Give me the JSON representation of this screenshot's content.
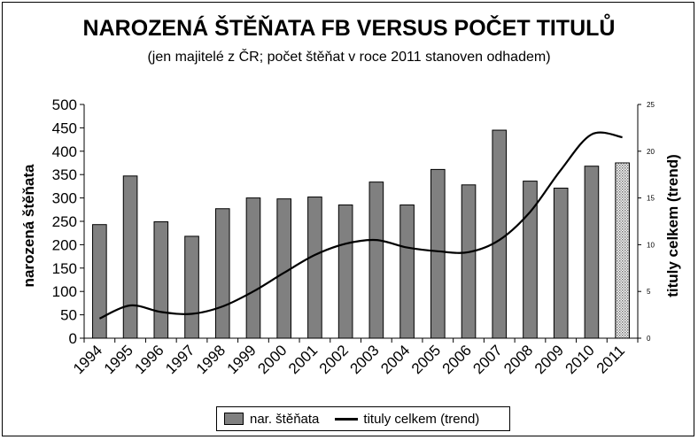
{
  "chart_data": {
    "type": "bar",
    "title": "NAROZENÁ ŠTĚŇATA FB VERSUS POČET TITULŮ",
    "subtitle": "(jen majitelé z ČR; počet štěňat v roce 2011 stanoven odhadem)",
    "categories": [
      "1994",
      "1995",
      "1996",
      "1997",
      "1998",
      "1999",
      "2000",
      "2001",
      "2002",
      "2003",
      "2004",
      "2005",
      "2006",
      "2007",
      "2008",
      "2009",
      "2010",
      "2011"
    ],
    "series": [
      {
        "name": "nar. štěňata",
        "type": "bar",
        "axis": "left",
        "color": "#808080",
        "values": [
          243,
          347,
          249,
          218,
          277,
          300,
          298,
          302,
          285,
          334,
          285,
          361,
          328,
          445,
          336,
          321,
          368,
          375
        ],
        "estimated_last": true
      },
      {
        "name": "tituly celkem (trend)",
        "type": "line",
        "axis": "right",
        "color": "#000000",
        "values": [
          2.1,
          3.5,
          2.8,
          2.6,
          3.4,
          5.0,
          7.0,
          8.9,
          10.1,
          10.5,
          9.7,
          9.3,
          9.2,
          10.5,
          13.5,
          18.0,
          21.8,
          21.5
        ]
      }
    ],
    "ylabel": "narozená štěňata",
    "y2label": "tituly celkem (trend)",
    "ylim": [
      0,
      500
    ],
    "y2lim": [
      0,
      25
    ],
    "yticks": [
      0,
      50,
      100,
      150,
      200,
      250,
      300,
      350,
      400,
      450,
      500
    ],
    "y2ticks": [
      0,
      5,
      10,
      15,
      20,
      25
    ],
    "grid": false,
    "legend_position": "bottom"
  },
  "legend": {
    "bar_label": "nar. štěňata",
    "line_label": "tituly celkem (trend)"
  }
}
